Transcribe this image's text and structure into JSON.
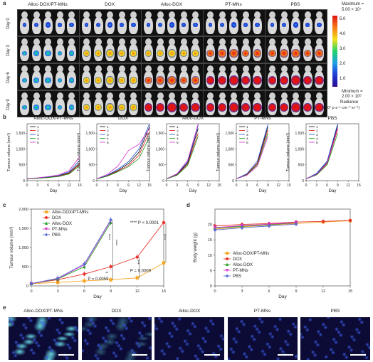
{
  "panels": {
    "a": "a",
    "b": "b",
    "c": "c",
    "d": "d",
    "e": "e"
  },
  "groups": [
    "Alloc-DOX/PT-MNs",
    "DOX",
    "Alloc-DOX",
    "PT-MNs",
    "PBS"
  ],
  "imaging": {
    "days": [
      "Day 0",
      "Day 3",
      "Day 6",
      "Day 9"
    ],
    "max_label": "Maximum =",
    "max_value": "5.00 × 10⁷",
    "min_label": "Minimum =",
    "min_value": "2.00 × 10⁶",
    "radiance_label": "Radiance",
    "radiance_units": "(×10⁷ p s⁻¹ cm⁻² sr⁻¹)",
    "colorbar_ticks": [
      "5.0",
      "4.0",
      "3.0",
      "2.0",
      "1.0"
    ]
  },
  "tumour_small": {
    "xlabel": "Day",
    "ylabel": "Tumour volume (mm³)",
    "xticks": [
      0,
      3,
      6,
      9,
      12,
      15
    ],
    "yticks": [
      "0",
      "500",
      "1,000",
      "1,500"
    ],
    "legend": [
      "1",
      "2",
      "3",
      "4",
      "5"
    ],
    "mouse_colors": [
      "#000000",
      "#e41a1c",
      "#1a4fd6",
      "#1a9a1a",
      "#d633c9"
    ]
  },
  "chart_data": [
    {
      "type": "line",
      "title": "Alloc-DOX/PT-MNs",
      "xlabel": "Day",
      "ylabel": "Tumour volume (mm³)",
      "xlim": [
        0,
        15
      ],
      "ylim": [
        0,
        1800
      ],
      "x": [
        0,
        3,
        6,
        9,
        12,
        15
      ],
      "series": [
        {
          "name": "1",
          "values": [
            60,
            80,
            110,
            150,
            250,
            560
          ]
        },
        {
          "name": "2",
          "values": [
            55,
            75,
            100,
            140,
            230,
            520
          ]
        },
        {
          "name": "3",
          "values": [
            58,
            85,
            120,
            160,
            280,
            640
          ]
        },
        {
          "name": "4",
          "values": [
            52,
            70,
            95,
            130,
            210,
            480
          ]
        },
        {
          "name": "5",
          "values": [
            60,
            90,
            130,
            180,
            320,
            760
          ]
        }
      ]
    },
    {
      "type": "line",
      "title": "DOX",
      "xlabel": "Day",
      "ylabel": "Tumour volume (mm³)",
      "xlim": [
        0,
        15
      ],
      "ylim": [
        0,
        1800
      ],
      "x": [
        0,
        3,
        6,
        9,
        12,
        15
      ],
      "series": [
        {
          "name": "1",
          "values": [
            60,
            160,
            320,
            540,
            900,
            1700
          ]
        },
        {
          "name": "2",
          "values": [
            55,
            150,
            300,
            480,
            800,
            1550
          ]
        },
        {
          "name": "3",
          "values": [
            58,
            170,
            360,
            600,
            1000,
            1800
          ]
        },
        {
          "name": "4",
          "values": [
            52,
            140,
            280,
            440,
            700,
            1380
          ]
        },
        {
          "name": "5",
          "values": [
            60,
            200,
            460,
            950,
            1150,
            1650
          ]
        }
      ]
    },
    {
      "type": "line",
      "title": "Alloc-DOX",
      "xlabel": "Day",
      "ylabel": "Tumour volume (mm³)",
      "xlim": [
        0,
        15
      ],
      "ylim": [
        0,
        1800
      ],
      "x": [
        0,
        3,
        6,
        9
      ],
      "series": [
        {
          "name": "1",
          "values": [
            60,
            200,
            560,
            1650
          ]
        },
        {
          "name": "2",
          "values": [
            55,
            180,
            520,
            1500
          ]
        },
        {
          "name": "3",
          "values": [
            58,
            210,
            600,
            1750
          ]
        },
        {
          "name": "4",
          "values": [
            52,
            170,
            480,
            1400
          ]
        },
        {
          "name": "5",
          "values": [
            60,
            220,
            640,
            1800
          ]
        }
      ]
    },
    {
      "type": "line",
      "title": "PT-MNs",
      "xlabel": "Day",
      "ylabel": "Tumour volume (mm³)",
      "xlim": [
        0,
        15
      ],
      "ylim": [
        0,
        1800
      ],
      "x": [
        0,
        3,
        6,
        9
      ],
      "series": [
        {
          "name": "1",
          "values": [
            60,
            200,
            560,
            1700
          ]
        },
        {
          "name": "2",
          "values": [
            55,
            190,
            540,
            1600
          ]
        },
        {
          "name": "3",
          "values": [
            58,
            220,
            620,
            1780
          ]
        },
        {
          "name": "4",
          "values": [
            52,
            180,
            500,
            1500
          ]
        },
        {
          "name": "5",
          "values": [
            60,
            170,
            460,
            1400
          ]
        }
      ]
    },
    {
      "type": "line",
      "title": "PBS",
      "xlabel": "Day",
      "ylabel": "Tumour volume (mm³)",
      "xlim": [
        0,
        15
      ],
      "ylim": [
        0,
        1800
      ],
      "x": [
        0,
        3,
        6,
        9
      ],
      "series": [
        {
          "name": "1",
          "values": [
            60,
            210,
            580,
            1750
          ]
        },
        {
          "name": "2",
          "values": [
            55,
            190,
            540,
            1620
          ]
        },
        {
          "name": "3",
          "values": [
            58,
            230,
            620,
            1800
          ]
        },
        {
          "name": "4",
          "values": [
            52,
            180,
            500,
            1500
          ]
        },
        {
          "name": "5",
          "values": [
            60,
            200,
            560,
            1680
          ]
        }
      ]
    },
    {
      "type": "line",
      "xlabel": "Day",
      "ylabel": "Tumour volume (mm³)",
      "xlim": [
        0,
        15
      ],
      "ylim": [
        0,
        2000
      ],
      "x": [
        0,
        3,
        6,
        9,
        12,
        15
      ],
      "yticks": [
        "0",
        "500",
        "1,000",
        "1,500",
        "2,000"
      ],
      "series": [
        {
          "name": "Alloc-DOX/PT-MNs",
          "color": "#f5a623",
          "marker": "square",
          "values": [
            60,
            90,
            130,
            160,
            210,
            600
          ]
        },
        {
          "name": "DOX",
          "color": "#e8342b",
          "marker": "circle",
          "values": [
            60,
            160,
            310,
            500,
            750,
            1650
          ]
        },
        {
          "name": "Alloc-DOX",
          "color": "#2a9d2a",
          "marker": "triangle",
          "values": [
            60,
            180,
            500,
            1650,
            null,
            null
          ]
        },
        {
          "name": "PT-MNs",
          "color": "#d633c9",
          "marker": "triangle-down",
          "values": [
            60,
            190,
            550,
            1700,
            null,
            null
          ]
        },
        {
          "name": "PBS",
          "color": "#5a6bd6",
          "marker": "diamond",
          "values": [
            60,
            200,
            570,
            1720,
            null,
            null
          ]
        }
      ],
      "annotations": [
        {
          "text": "**** P < 0.0001"
        },
        {
          "text": "P = 0.0009"
        },
        {
          "text": "P = 0.0059"
        },
        {
          "text": "****"
        },
        {
          "text": "****"
        },
        {
          "text": "****"
        },
        {
          "text": "**"
        },
        {
          "text": "***"
        }
      ]
    },
    {
      "type": "line",
      "xlabel": "Day",
      "ylabel": "Body weight (g)",
      "xlim": [
        0,
        15
      ],
      "ylim": [
        0,
        25
      ],
      "x": [
        0,
        3,
        6,
        9,
        12,
        15
      ],
      "yticks": [
        "0",
        "5",
        "10",
        "15",
        "20"
      ],
      "series": [
        {
          "name": "Alloc-DOX/PT-MNs",
          "color": "#f5a623",
          "marker": "square",
          "values": [
            18.5,
            19.2,
            19.8,
            20.3,
            20.8,
            21.2
          ]
        },
        {
          "name": "DOX",
          "color": "#e8342b",
          "marker": "circle",
          "values": [
            19.5,
            20.0,
            20.3,
            20.8,
            21.0,
            21.3
          ]
        },
        {
          "name": "Alloc-DOX",
          "color": "#2a9d2a",
          "marker": "triangle",
          "values": [
            18.8,
            19.4,
            19.9,
            20.5,
            null,
            null
          ]
        },
        {
          "name": "PT-MNs",
          "color": "#d633c9",
          "marker": "triangle-down",
          "values": [
            19.0,
            19.6,
            20.1,
            20.6,
            null,
            null
          ]
        },
        {
          "name": "PBS",
          "color": "#5a6bd6",
          "marker": "diamond",
          "values": [
            18.2,
            18.9,
            19.5,
            20.1,
            null,
            null
          ]
        }
      ]
    }
  ],
  "micro_scalebar": ""
}
